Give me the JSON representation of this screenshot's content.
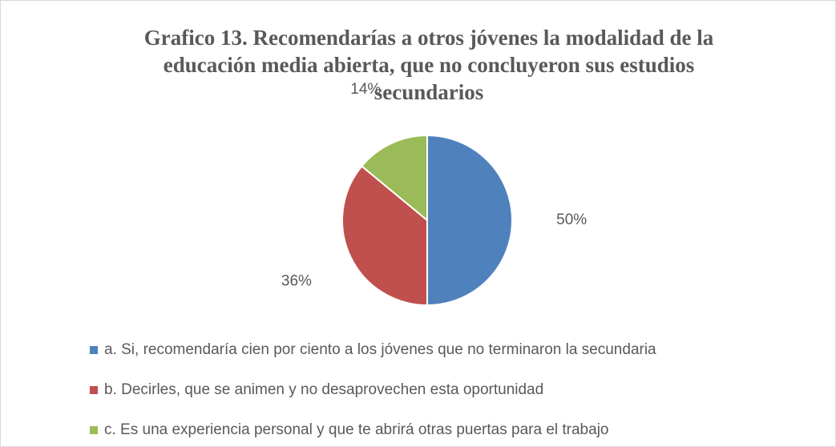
{
  "chart_data": {
    "type": "pie",
    "title": "Grafico 13. Recomendarías a otros jóvenes la modalidad de la educación media abierta, que no concluyeron sus estudios secundarios",
    "categories": [
      "a. Si, recomendaría cien por ciento a los jóvenes que no terminaron la secundaria",
      "b. Decirles, que se animen y no desaprovechen esta oportunidad",
      "c. Es una experiencia personal y que te abrirá otras puertas para el trabajo"
    ],
    "values": [
      50,
      36,
      14
    ],
    "value_labels": [
      "50%",
      "36%",
      "14%"
    ],
    "colors": [
      "#4f81bd",
      "#c0504d",
      "#9bbb59"
    ],
    "legend": "bottom"
  }
}
